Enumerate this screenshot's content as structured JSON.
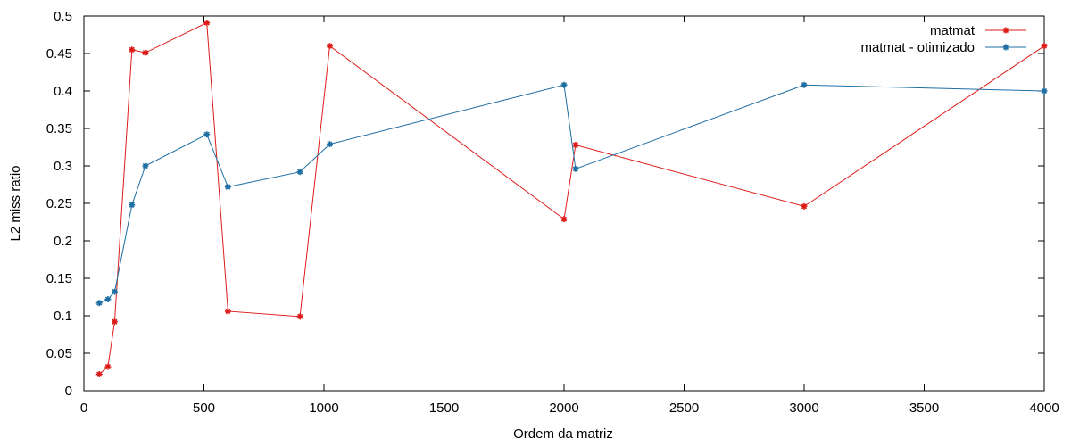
{
  "chart_data": {
    "type": "line",
    "title": "",
    "xlabel": "Ordem da matriz",
    "ylabel": "L2 miss ratio",
    "xlim": [
      0,
      4000
    ],
    "ylim": [
      0,
      0.5
    ],
    "xticks": [
      0,
      500,
      1000,
      1500,
      2000,
      2500,
      3000,
      3500,
      4000
    ],
    "yticks": [
      0,
      0.05,
      0.1,
      0.15,
      0.2,
      0.25,
      0.3,
      0.35,
      0.4,
      0.45,
      0.5
    ],
    "ytick_labels": [
      "0",
      "0.05",
      "0.1",
      "0.15",
      "0.2",
      "0.25",
      "0.3",
      "0.35",
      "0.4",
      "0.45",
      "0.5"
    ],
    "grid": false,
    "legend_position": "top-right",
    "series": [
      {
        "name": "matmat",
        "color": "#dd1c1a",
        "x": [
          64,
          100,
          128,
          200,
          256,
          512,
          600,
          900,
          1024,
          2000,
          2048,
          3000,
          4000
        ],
        "y": [
          0.022,
          0.032,
          0.092,
          0.455,
          0.451,
          0.491,
          0.106,
          0.099,
          0.46,
          0.229,
          0.328,
          0.246,
          0.46
        ]
      },
      {
        "name": "matmat - otimizado",
        "color": "#1f6ea3",
        "x": [
          64,
          100,
          128,
          200,
          256,
          512,
          600,
          900,
          1024,
          2000,
          2048,
          3000,
          4000
        ],
        "y": [
          0.117,
          0.122,
          0.132,
          0.248,
          0.3,
          0.342,
          0.272,
          0.292,
          0.329,
          0.408,
          0.296,
          0.408,
          0.4
        ]
      }
    ]
  }
}
